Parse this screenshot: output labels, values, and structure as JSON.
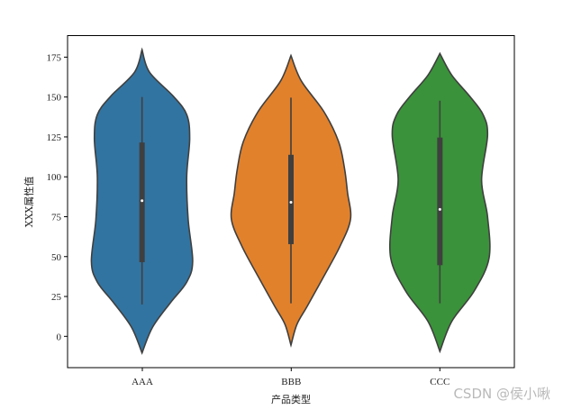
{
  "chart_data": {
    "type": "violin",
    "title": "",
    "xlabel": "产品类型",
    "ylabel": "XXX属性值",
    "categories": [
      "AAA",
      "BBB",
      "CCC"
    ],
    "ylim": [
      -19.6,
      188.5
    ],
    "xlim": [
      -0.5,
      2.5
    ],
    "yticks": [
      0,
      25,
      50,
      75,
      100,
      125,
      150,
      175
    ],
    "grid": false,
    "colors": [
      "#3274a1",
      "#e1812c",
      "#3a923a"
    ],
    "edge_color": "#3f3f3f",
    "series": [
      {
        "name": "AAA",
        "median": 85,
        "q1": 46.5,
        "q3": 121.5,
        "whisker_low": 20,
        "whisker_high": 150,
        "density_profile": [
          [
            179.7,
            0
          ],
          [
            165.6,
            0.05
          ],
          [
            150.5,
            0.21
          ],
          [
            139,
            0.3
          ],
          [
            124,
            0.32
          ],
          [
            100,
            0.3
          ],
          [
            73,
            0.31
          ],
          [
            47,
            0.34
          ],
          [
            34,
            0.3
          ],
          [
            21,
            0.19
          ],
          [
            5.6,
            0.07
          ],
          [
            -10.4,
            0
          ]
        ]
      },
      {
        "name": "BBB",
        "median": 84,
        "q1": 57.8,
        "q3": 113.8,
        "whisker_low": 20.7,
        "whisker_high": 149.6,
        "density_profile": [
          [
            176,
            0
          ],
          [
            160,
            0.07
          ],
          [
            141,
            0.22
          ],
          [
            122,
            0.32
          ],
          [
            105,
            0.36
          ],
          [
            90,
            0.38
          ],
          [
            73.5,
            0.4
          ],
          [
            56.6,
            0.33
          ],
          [
            37.5,
            0.22
          ],
          [
            19,
            0.11
          ],
          [
            7.5,
            0.04
          ],
          [
            -5.5,
            0
          ]
        ]
      },
      {
        "name": "CCC",
        "median": 79.6,
        "q1": 44.6,
        "q3": 124.6,
        "whisker_low": 20.7,
        "whisker_high": 147.7,
        "density_profile": [
          [
            177.3,
            0
          ],
          [
            163.7,
            0.08
          ],
          [
            150.5,
            0.2
          ],
          [
            139,
            0.29
          ],
          [
            126,
            0.32
          ],
          [
            98,
            0.28
          ],
          [
            75,
            0.32
          ],
          [
            49,
            0.33
          ],
          [
            28.4,
            0.23
          ],
          [
            9.4,
            0.08
          ],
          [
            -9.4,
            0
          ]
        ]
      }
    ]
  },
  "watermark": "CSDN @侯小啾"
}
